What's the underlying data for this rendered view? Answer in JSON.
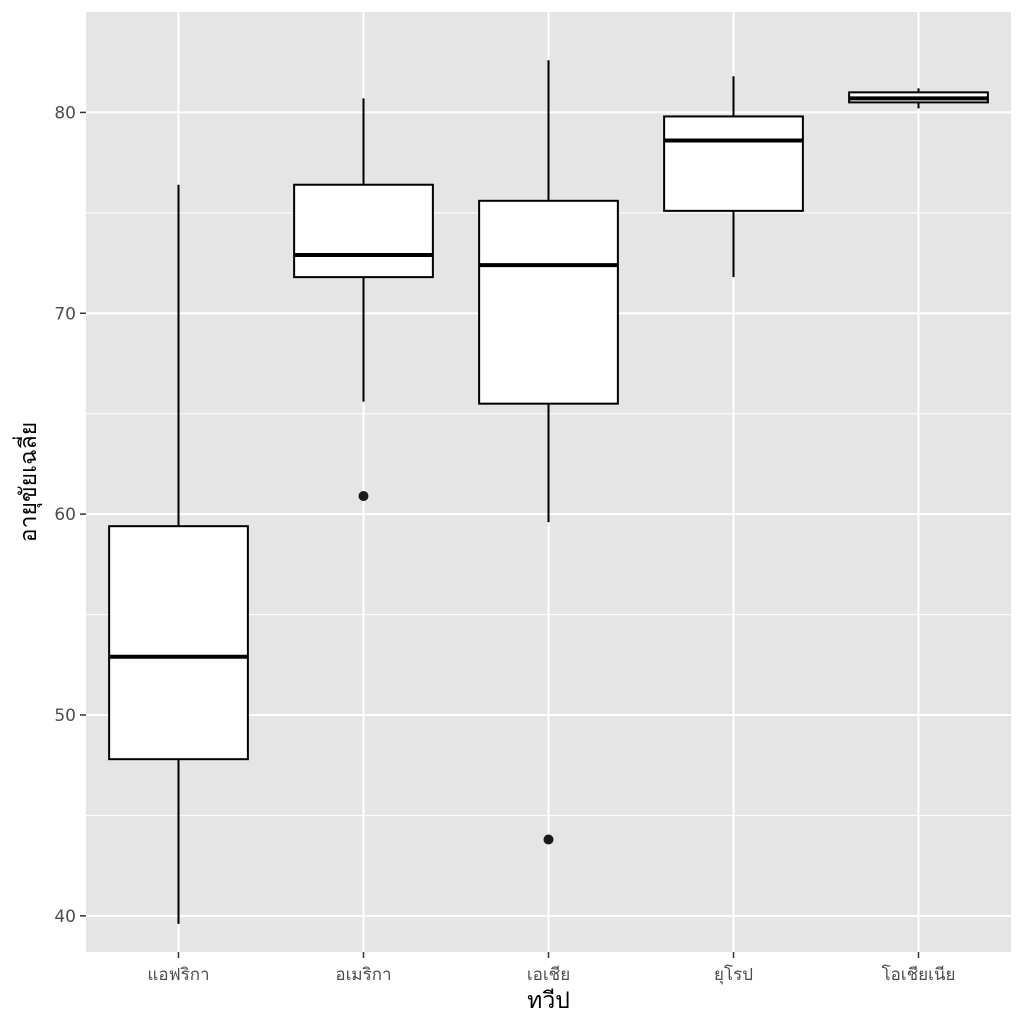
{
  "chart_data": {
    "type": "boxplot",
    "title": "",
    "xlabel": "ทวีป",
    "ylabel": "อายุขัยเฉลี่ย",
    "ylim": [
      38.2,
      85.0
    ],
    "y_ticks": [
      40,
      50,
      60,
      70,
      80
    ],
    "y_tick_labels": [
      "40",
      "50",
      "60",
      "70",
      "80"
    ],
    "grid": true,
    "legend": "none",
    "colors": {
      "panel_background": "#e5e5e5",
      "grid_line": "#ffffff",
      "box_fill": "#ffffff",
      "box_outline": "#000000",
      "outlier": "#1a1a1a",
      "tick_label": "#4d4d4d"
    },
    "categories": [
      "แอฟริกา",
      "อเมริกา",
      "เอเชีย",
      "ยุโรป",
      "โอเชียเนีย"
    ],
    "boxes": [
      {
        "category": "แอฟริกา",
        "whisker_low": 39.6,
        "q1": 47.8,
        "median": 52.9,
        "q3": 59.4,
        "whisker_high": 76.4,
        "outliers": []
      },
      {
        "category": "อเมริกา",
        "whisker_low": 65.6,
        "q1": 71.8,
        "median": 72.9,
        "q3": 76.4,
        "whisker_high": 80.7,
        "outliers": [
          60.9
        ]
      },
      {
        "category": "เอเชีย",
        "whisker_low": 59.6,
        "q1": 65.5,
        "median": 72.4,
        "q3": 75.6,
        "whisker_high": 82.6,
        "outliers": [
          43.8
        ]
      },
      {
        "category": "ยุโรป",
        "whisker_low": 71.8,
        "q1": 75.1,
        "median": 78.6,
        "q3": 79.8,
        "whisker_high": 81.8,
        "outliers": []
      },
      {
        "category": "โอเชียเนีย",
        "whisker_low": 80.2,
        "q1": 80.5,
        "median": 80.7,
        "q3": 81.0,
        "whisker_high": 81.2,
        "outliers": []
      }
    ]
  }
}
